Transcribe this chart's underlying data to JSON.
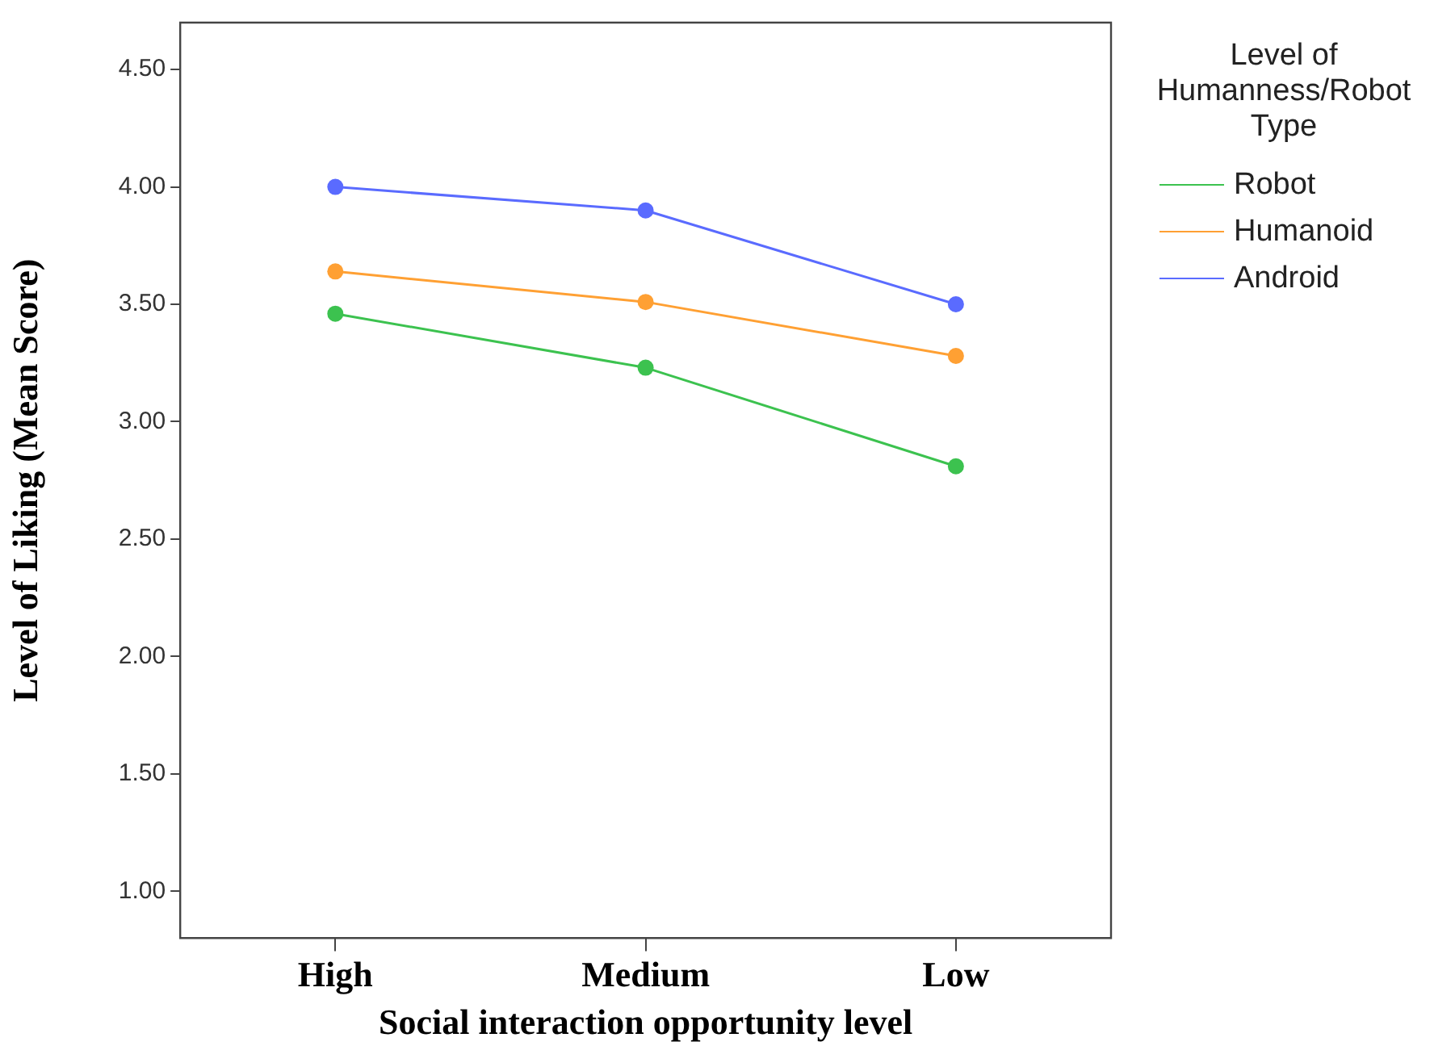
{
  "chart_data": {
    "type": "line",
    "xlabel": "Social interaction opportunity level",
    "ylabel": "Level of Liking (Mean Score)",
    "legend_title": "Level of Humanness/Robot Type",
    "categories": [
      "High",
      "Medium",
      "Low"
    ],
    "series": [
      {
        "name": "Robot",
        "color": "#3cc24f",
        "values": [
          3.46,
          3.23,
          2.81
        ]
      },
      {
        "name": "Humanoid",
        "color": "#ffa033",
        "values": [
          3.64,
          3.51,
          3.28
        ]
      },
      {
        "name": "Android",
        "color": "#5a6bff",
        "values": [
          4.0,
          3.9,
          3.5
        ]
      }
    ],
    "ylim": [
      0.8,
      4.7
    ],
    "yticks": [
      {
        "value": 1,
        "label": "1.00"
      },
      {
        "value": 1.5,
        "label": "1.50"
      },
      {
        "value": 2,
        "label": "2.00"
      },
      {
        "value": 2.5,
        "label": "2.50"
      },
      {
        "value": 3,
        "label": "3.00"
      },
      {
        "value": 3.5,
        "label": "3.50"
      },
      {
        "value": 4,
        "label": "4.00"
      },
      {
        "value": 4.5,
        "label": "4.50"
      }
    ],
    "grid": false,
    "legend": "right",
    "marker": "circle",
    "line_style": "solid"
  }
}
